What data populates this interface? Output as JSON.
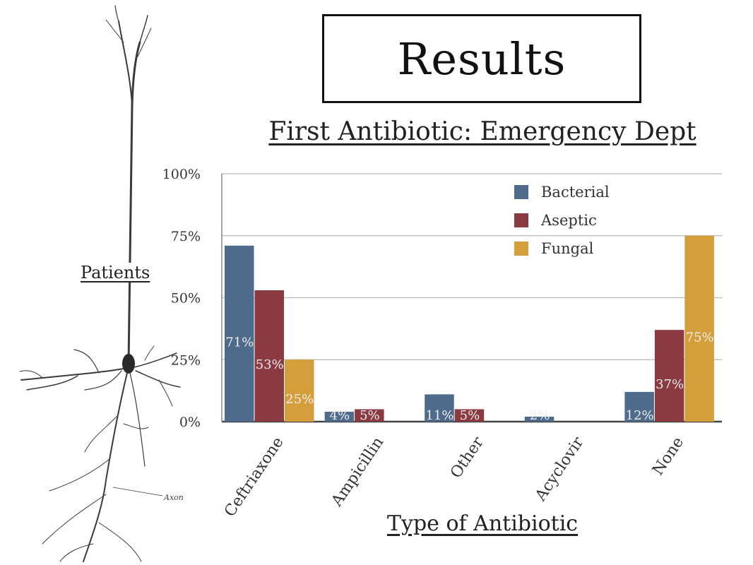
{
  "page": {
    "title": "Results",
    "neuron_label": "Axon"
  },
  "chart_data": {
    "type": "bar",
    "title": "First Antibiotic:  Emergency Dept",
    "xlabel": "Type of Antibiotic",
    "ylabel": "Patients",
    "ylim": [
      0,
      100
    ],
    "yticks": [
      "0%",
      "25%",
      "50%",
      "75%",
      "100%"
    ],
    "categories": [
      "Ceftriaxone",
      "Ampicillin",
      "Other",
      "Acyclovir",
      "None"
    ],
    "series": [
      {
        "name": "Bacterial",
        "color": "#4e6b8c",
        "values": [
          71,
          4,
          11,
          2,
          12
        ],
        "labels": [
          "71%",
          "4%",
          "11%",
          "2%",
          "12%"
        ]
      },
      {
        "name": "Aseptic",
        "color": "#8b3a42",
        "values": [
          53,
          5,
          5,
          0,
          37
        ],
        "labels": [
          "53%",
          "5%",
          "5%",
          "",
          "37%"
        ]
      },
      {
        "name": "Fungal",
        "color": "#d49f3a",
        "values": [
          25,
          0,
          0,
          0,
          75
        ],
        "labels": [
          "25%",
          "",
          "",
          "",
          "75%"
        ]
      }
    ],
    "grid": true,
    "legend_position": "top-right"
  }
}
